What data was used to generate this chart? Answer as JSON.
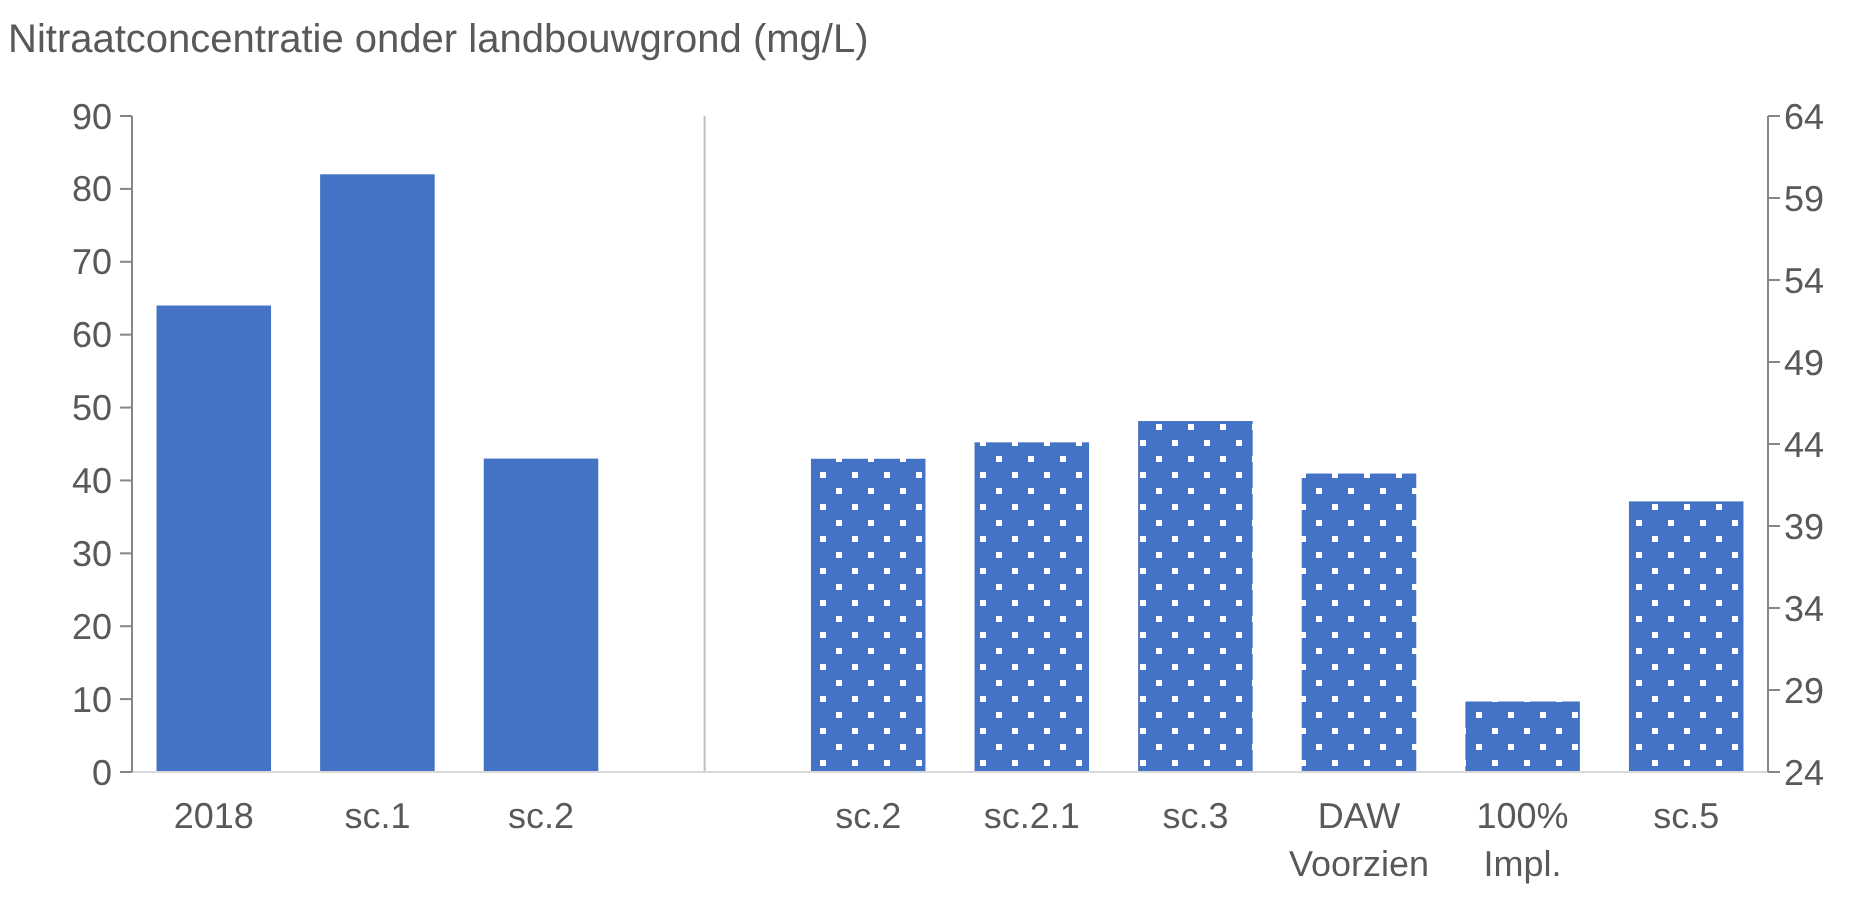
{
  "chart_data": {
    "type": "bar",
    "title": "Nitraatconcentratie onder landbouwgrond (mg/L)",
    "categories": [
      "2018",
      "sc.1",
      "sc.2",
      null,
      "sc.2",
      "sc.2.1",
      "sc.3",
      "DAW Voorzien",
      "100% Impl.",
      "sc.5"
    ],
    "series": [
      {
        "color": "#4472c4",
        "values": [
          64,
          82,
          43,
          null,
          null,
          null,
          null,
          null,
          null,
          null
        ]
      },
      {
        "color": "#4472c4",
        "axis": "y2",
        "values": [
          null,
          null,
          null,
          null,
          43.1,
          44.1,
          45.4,
          42.2,
          28.3,
          40.5
        ]
      }
    ],
    "ylim": [
      0,
      90
    ],
    "yticks": [
      0,
      10,
      20,
      30,
      40,
      50,
      60,
      70,
      80,
      90
    ],
    "y2lim": [
      24,
      64
    ],
    "y2ticks": [
      24,
      29,
      34,
      39,
      44,
      49,
      54,
      59,
      64
    ]
  }
}
